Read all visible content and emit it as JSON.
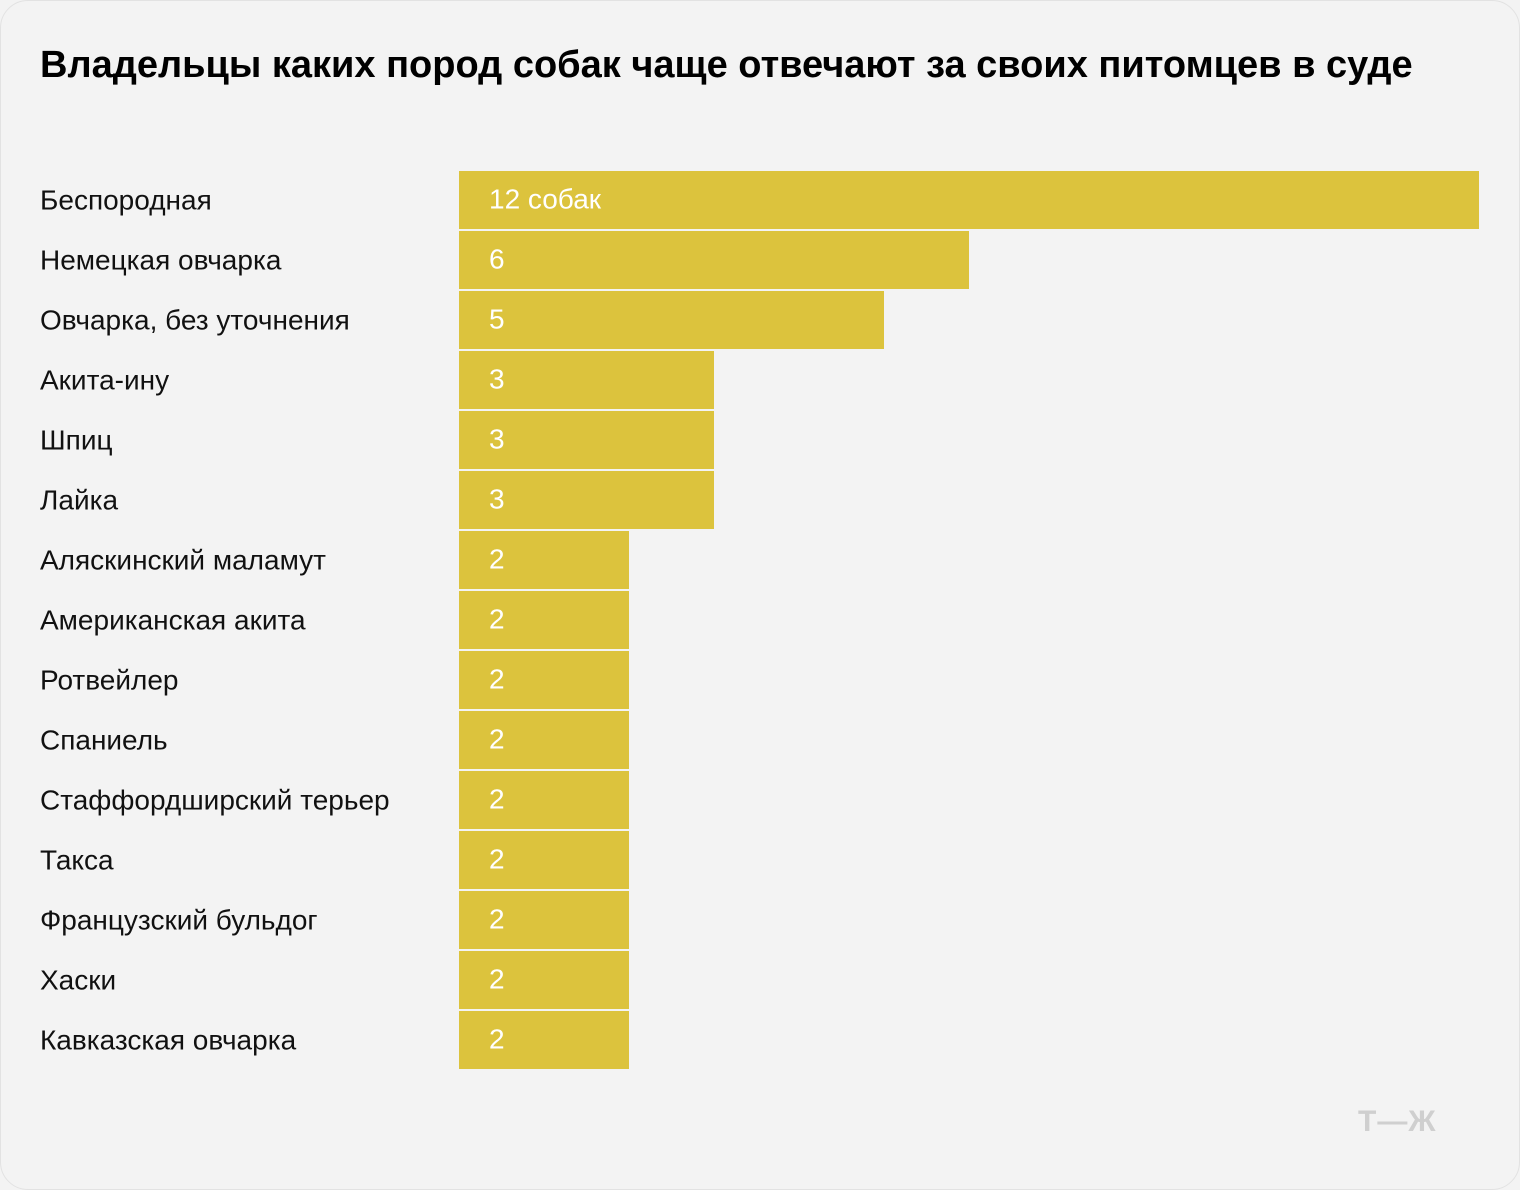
{
  "header": {
    "title": "Владельцы каких пород собак чаще отвечают за своих питомцев в суде"
  },
  "brand": {
    "logo_text": "Т—Ж"
  },
  "colors": {
    "bar": "#dcc33d",
    "background": "#f3f3f3",
    "label_text": "#ffffff"
  },
  "chart_data": {
    "type": "bar",
    "orientation": "horizontal",
    "title": "Владельцы каких пород собак чаще отвечают за своих питомцев в суде",
    "categories": [
      "Беспородная",
      "Немецкая овчарка",
      "Овчарка, без уточнения",
      "Акита-ину",
      "Шпиц",
      "Лайка",
      "Аляскинский маламут",
      "Американская акита",
      "Ротвейлер",
      "Спаниель",
      "Стаффордширский терьер",
      "Такса",
      "Французский бульдог",
      "Хаски",
      "Кавказская овчарка"
    ],
    "values": [
      12,
      6,
      5,
      3,
      3,
      3,
      2,
      2,
      2,
      2,
      2,
      2,
      2,
      2,
      2
    ],
    "value_labels": [
      "12 собак",
      "6",
      "5",
      "3",
      "3",
      "3",
      "2",
      "2",
      "2",
      "2",
      "2",
      "2",
      "2",
      "2",
      "2"
    ],
    "xlim": [
      0,
      12
    ],
    "xlabel": "",
    "ylabel": "",
    "grid": false,
    "legend": "none"
  }
}
